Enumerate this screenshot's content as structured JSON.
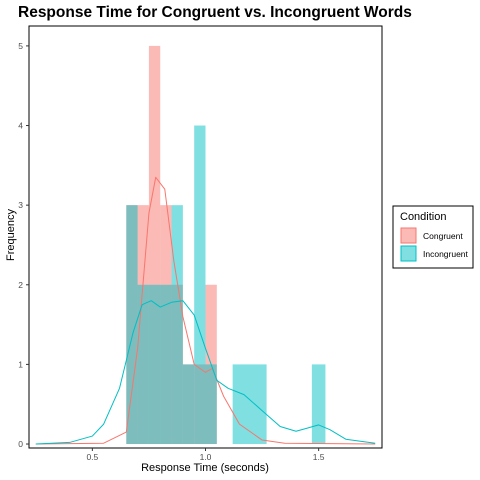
{
  "chart_data": {
    "type": "histogram",
    "title": "Response Time for Congruent vs. Incongruent Words",
    "xlabel": "Response Time (seconds)",
    "ylabel": "Frequency",
    "xlim": [
      0.22,
      1.78
    ],
    "ylim": [
      -0.05,
      5.25
    ],
    "x_ticks": [
      0.5,
      1.0,
      1.5
    ],
    "x_tick_labels": [
      "0.5",
      "1.0",
      "1.5"
    ],
    "y_ticks": [
      0,
      1,
      2,
      3,
      4,
      5
    ],
    "y_tick_labels": [
      "0",
      "1",
      "2",
      "3",
      "4",
      "5"
    ],
    "grid": false,
    "legend": {
      "title": "Condition",
      "position": "right"
    },
    "series": [
      {
        "name": "Congruent",
        "color": "#F8766D",
        "bins": [
          {
            "x0": 0.65,
            "x1": 0.75,
            "count": 3
          },
          {
            "x0": 0.75,
            "x1": 0.8,
            "count": 5
          },
          {
            "x0": 0.8,
            "x1": 0.85,
            "count": 3
          },
          {
            "x0": 0.85,
            "x1": 0.9,
            "count": 2
          },
          {
            "x0": 0.9,
            "x1": 0.95,
            "count": 1
          },
          {
            "x0": 0.95,
            "x1": 1.0,
            "count": 1
          },
          {
            "x0": 1.0,
            "x1": 1.05,
            "count": 2
          }
        ],
        "density": [
          [
            0.25,
            0
          ],
          [
            0.55,
            0.01
          ],
          [
            0.65,
            0.15
          ],
          [
            0.7,
            1.2
          ],
          [
            0.75,
            2.9
          ],
          [
            0.78,
            3.35
          ],
          [
            0.82,
            3.2
          ],
          [
            0.86,
            2.3
          ],
          [
            0.9,
            1.6
          ],
          [
            0.95,
            1.0
          ],
          [
            1.0,
            0.9
          ],
          [
            1.03,
            0.95
          ],
          [
            1.08,
            0.6
          ],
          [
            1.15,
            0.25
          ],
          [
            1.25,
            0.05
          ],
          [
            1.35,
            0.01
          ],
          [
            1.75,
            0
          ]
        ]
      },
      {
        "name": "Incongruent",
        "color": "#00BFC4",
        "bins": [
          {
            "x0": 0.65,
            "x1": 0.7,
            "count": 3
          },
          {
            "x0": 0.7,
            "x1": 0.85,
            "count": 2
          },
          {
            "x0": 0.85,
            "x1": 0.9,
            "count": 3
          },
          {
            "x0": 0.9,
            "x1": 0.95,
            "count": 1
          },
          {
            "x0": 0.95,
            "x1": 1.0,
            "count": 4
          },
          {
            "x0": 1.0,
            "x1": 1.05,
            "count": 1
          },
          {
            "x0": 1.12,
            "x1": 1.27,
            "count": 1
          },
          {
            "x0": 1.47,
            "x1": 1.53,
            "count": 1
          }
        ],
        "density": [
          [
            0.25,
            0
          ],
          [
            0.4,
            0.02
          ],
          [
            0.5,
            0.1
          ],
          [
            0.55,
            0.25
          ],
          [
            0.62,
            0.7
          ],
          [
            0.68,
            1.4
          ],
          [
            0.72,
            1.75
          ],
          [
            0.76,
            1.8
          ],
          [
            0.8,
            1.72
          ],
          [
            0.85,
            1.78
          ],
          [
            0.9,
            1.8
          ],
          [
            0.95,
            1.62
          ],
          [
            1.0,
            1.2
          ],
          [
            1.05,
            0.8
          ],
          [
            1.1,
            0.7
          ],
          [
            1.17,
            0.62
          ],
          [
            1.25,
            0.42
          ],
          [
            1.33,
            0.22
          ],
          [
            1.4,
            0.16
          ],
          [
            1.45,
            0.2
          ],
          [
            1.5,
            0.24
          ],
          [
            1.55,
            0.18
          ],
          [
            1.62,
            0.06
          ],
          [
            1.75,
            0.01
          ]
        ]
      }
    ]
  }
}
